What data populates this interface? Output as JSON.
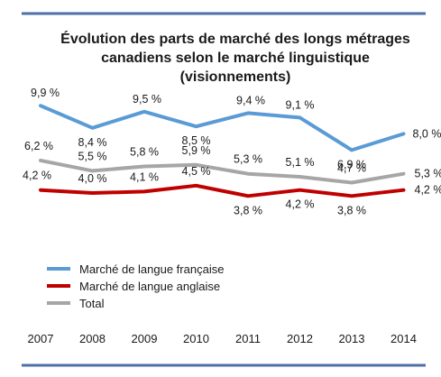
{
  "chart_data": {
    "type": "line",
    "title": [
      "Évolution des parts de marché des longs métrages",
      "canadiens selon le marché linguistique",
      "(visionnements)"
    ],
    "categories": [
      "2007",
      "2008",
      "2009",
      "2010",
      "2011",
      "2012",
      "2013",
      "2014"
    ],
    "series": [
      {
        "name": "Marché de langue française",
        "color": "#5b9bd5",
        "values": [
          9.9,
          8.4,
          9.5,
          8.5,
          9.4,
          9.1,
          6.9,
          8.0
        ],
        "labels": [
          "9,9 %",
          "8,4 %",
          "9,5 %",
          "8,5 %",
          "9,4 %",
          "9,1 %",
          "6,9 %",
          "8,0 %"
        ]
      },
      {
        "name": "Marché de langue anglaise",
        "color": "#c00000",
        "values": [
          4.2,
          4.0,
          4.1,
          4.5,
          3.8,
          4.2,
          3.8,
          4.2
        ],
        "labels": [
          "4,2 %",
          "4,0 %",
          "4,1 %",
          "4,5 %",
          "3,8 %",
          "4,2 %",
          "3,8 %",
          "4,2 %"
        ]
      },
      {
        "name": "Total",
        "color": "#a6a6a6",
        "values": [
          6.2,
          5.5,
          5.8,
          5.9,
          5.3,
          5.1,
          4.7,
          5.3
        ],
        "labels": [
          "6,2 %",
          "5,5 %",
          "5,8 %",
          "5,9 %",
          "5,3 %",
          "5,1 %",
          "4,7 %",
          "5,3 %"
        ]
      }
    ],
    "legend": "bottom-left",
    "grid": false,
    "frame_color": "#4f6fa8"
  }
}
